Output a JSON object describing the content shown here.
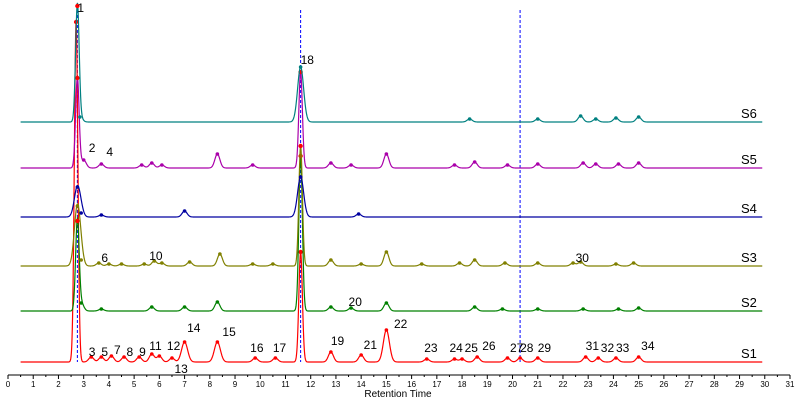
{
  "chart_data": {
    "type": "line",
    "title": "",
    "xlabel": "Retention Time",
    "ylabel": "",
    "xlim": [
      0,
      31
    ],
    "x_ticks": [
      0,
      1,
      2,
      3,
      4,
      5,
      6,
      7,
      8,
      9,
      10,
      11,
      12,
      13,
      14,
      15,
      16,
      17,
      18,
      19,
      20,
      21,
      22,
      23,
      24,
      25,
      26,
      27,
      28,
      29,
      30,
      31
    ],
    "grid": false,
    "legend": "none",
    "series": [
      {
        "name": "S1",
        "color": "#ff0000",
        "baseline": 362,
        "peaks": [
          [
            2.7,
            340
          ],
          [
            3.3,
            5
          ],
          [
            3.7,
            5
          ],
          [
            4.1,
            6
          ],
          [
            4.6,
            5
          ],
          [
            5.2,
            5
          ],
          [
            5.7,
            8
          ],
          [
            6.0,
            6
          ],
          [
            6.5,
            4
          ],
          [
            7.0,
            20
          ],
          [
            8.3,
            20
          ],
          [
            9.8,
            4
          ],
          [
            10.6,
            4
          ],
          [
            11.6,
            110
          ],
          [
            12.8,
            10
          ],
          [
            14.0,
            7
          ],
          [
            15.0,
            32
          ],
          [
            16.6,
            3
          ],
          [
            17.7,
            3
          ],
          [
            18.0,
            3
          ],
          [
            18.6,
            5
          ],
          [
            19.8,
            4
          ],
          [
            20.3,
            4
          ],
          [
            21.0,
            4
          ],
          [
            22.9,
            5
          ],
          [
            23.4,
            4
          ],
          [
            24.1,
            4
          ],
          [
            25.0,
            5
          ]
        ]
      },
      {
        "name": "S2",
        "color": "#008000",
        "baseline": 311,
        "peaks": [
          [
            2.75,
            90
          ],
          [
            2.9,
            8
          ],
          [
            3.7,
            2
          ],
          [
            5.7,
            4
          ],
          [
            7.0,
            4
          ],
          [
            8.3,
            9
          ],
          [
            11.6,
            155
          ],
          [
            12.8,
            4
          ],
          [
            13.6,
            3
          ],
          [
            15.0,
            8
          ],
          [
            18.5,
            4
          ],
          [
            19.6,
            2
          ],
          [
            21.0,
            2
          ],
          [
            22.8,
            2
          ],
          [
            24.2,
            2
          ],
          [
            25.0,
            3
          ]
        ]
      },
      {
        "name": "S3",
        "color": "#808000",
        "baseline": 266,
        "peaks": [
          [
            2.75,
            60
          ],
          [
            2.9,
            6
          ],
          [
            3.6,
            3
          ],
          [
            4.0,
            2
          ],
          [
            4.5,
            2
          ],
          [
            5.4,
            2
          ],
          [
            5.8,
            5
          ],
          [
            6.1,
            3
          ],
          [
            7.2,
            4
          ],
          [
            8.4,
            12
          ],
          [
            9.7,
            2
          ],
          [
            10.5,
            2
          ],
          [
            11.6,
            120
          ],
          [
            12.8,
            6
          ],
          [
            14.0,
            2
          ],
          [
            15.0,
            14
          ],
          [
            16.4,
            2
          ],
          [
            17.9,
            3
          ],
          [
            18.5,
            6
          ],
          [
            19.7,
            3
          ],
          [
            21.0,
            3
          ],
          [
            22.4,
            3
          ],
          [
            22.7,
            4
          ],
          [
            24.1,
            2
          ],
          [
            24.8,
            3
          ]
        ]
      },
      {
        "name": "S4",
        "color": "#0000a0",
        "baseline": 217,
        "peaks": [
          [
            2.75,
            30
          ],
          [
            2.9,
            4
          ],
          [
            3.7,
            2
          ],
          [
            7.0,
            6
          ],
          [
            11.6,
            40
          ],
          [
            13.9,
            3
          ]
        ]
      },
      {
        "name": "S5",
        "color": "#aa00aa",
        "baseline": 168,
        "peaks": [
          [
            2.75,
            90
          ],
          [
            3.0,
            8
          ],
          [
            3.7,
            4
          ],
          [
            5.3,
            3
          ],
          [
            5.7,
            5
          ],
          [
            6.1,
            3
          ],
          [
            8.3,
            14
          ],
          [
            9.7,
            3
          ],
          [
            11.6,
            96
          ],
          [
            12.8,
            5
          ],
          [
            13.6,
            3
          ],
          [
            15.0,
            14
          ],
          [
            17.7,
            3
          ],
          [
            18.5,
            6
          ],
          [
            19.8,
            3
          ],
          [
            21.0,
            4
          ],
          [
            22.8,
            5
          ],
          [
            23.3,
            4
          ],
          [
            24.2,
            4
          ],
          [
            25.0,
            5
          ]
        ]
      },
      {
        "name": "S6",
        "color": "#008080",
        "baseline": 122,
        "peaks": [
          [
            2.75,
            116
          ],
          [
            2.85,
            5
          ],
          [
            11.6,
            55
          ],
          [
            18.3,
            3
          ],
          [
            21.0,
            3
          ],
          [
            22.7,
            6
          ],
          [
            23.3,
            3
          ],
          [
            24.1,
            4
          ],
          [
            25.0,
            5
          ]
        ]
      }
    ],
    "peak_labels": [
      {
        "text": "1",
        "x": 2.75,
        "y": 12
      },
      {
        "text": "2",
        "x": 3.2,
        "y": 152
      },
      {
        "text": "4",
        "x": 3.9,
        "y": 156
      },
      {
        "text": "18",
        "x": 11.6,
        "y": 64
      },
      {
        "text": "6",
        "x": 3.7,
        "y": 262
      },
      {
        "text": "10",
        "x": 5.6,
        "y": 260
      },
      {
        "text": "30",
        "x": 22.5,
        "y": 262
      },
      {
        "text": "20",
        "x": 13.5,
        "y": 306
      },
      {
        "text": "3",
        "x": 3.2,
        "y": 356
      },
      {
        "text": "5",
        "x": 3.7,
        "y": 356
      },
      {
        "text": "7",
        "x": 4.2,
        "y": 354
      },
      {
        "text": "8",
        "x": 4.7,
        "y": 356
      },
      {
        "text": "9",
        "x": 5.2,
        "y": 356
      },
      {
        "text": "11",
        "x": 5.6,
        "y": 350
      },
      {
        "text": "12",
        "x": 6.3,
        "y": 350
      },
      {
        "text": "13",
        "x": 6.6,
        "y": 373
      },
      {
        "text": "14",
        "x": 7.1,
        "y": 332
      },
      {
        "text": "15",
        "x": 8.5,
        "y": 336
      },
      {
        "text": "16",
        "x": 9.6,
        "y": 352
      },
      {
        "text": "17",
        "x": 10.5,
        "y": 352
      },
      {
        "text": "19",
        "x": 12.8,
        "y": 345
      },
      {
        "text": "21",
        "x": 14.1,
        "y": 349
      },
      {
        "text": "22",
        "x": 15.3,
        "y": 328
      },
      {
        "text": "23",
        "x": 16.5,
        "y": 352
      },
      {
        "text": "24",
        "x": 17.5,
        "y": 352
      },
      {
        "text": "25",
        "x": 18.1,
        "y": 352
      },
      {
        "text": "26",
        "x": 18.8,
        "y": 350
      },
      {
        "text": "27",
        "x": 19.9,
        "y": 352
      },
      {
        "text": "28",
        "x": 20.3,
        "y": 352
      },
      {
        "text": "29",
        "x": 21.0,
        "y": 352
      },
      {
        "text": "31",
        "x": 22.9,
        "y": 350
      },
      {
        "text": "32",
        "x": 23.5,
        "y": 352
      },
      {
        "text": "33",
        "x": 24.1,
        "y": 352
      },
      {
        "text": "34",
        "x": 25.1,
        "y": 350
      }
    ],
    "reference_lines": [
      {
        "x": 2.75,
        "style": "dashed",
        "color": "#0000ff"
      },
      {
        "x": 11.6,
        "style": "dashed",
        "color": "#0000ff"
      },
      {
        "x": 20.3,
        "style": "dashed",
        "color": "#0000ff"
      }
    ]
  }
}
